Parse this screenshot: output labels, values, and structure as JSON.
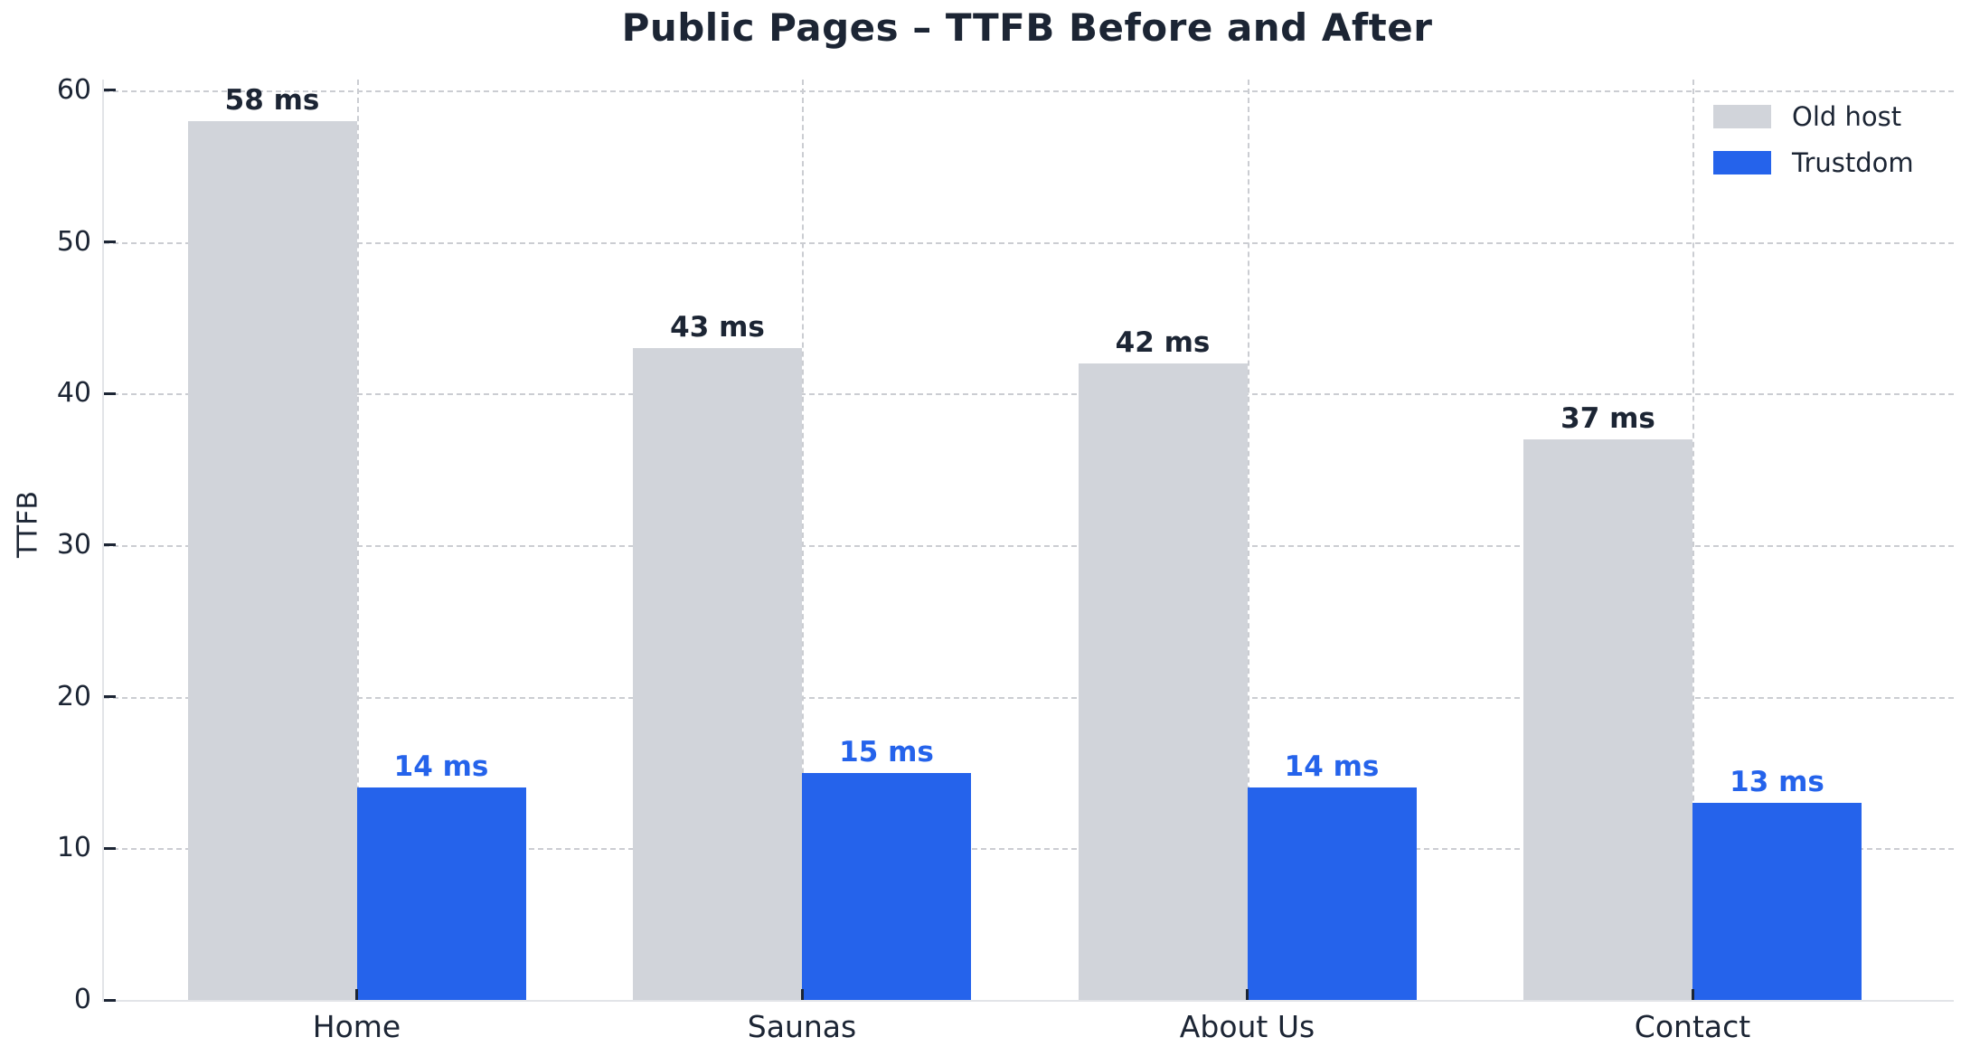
{
  "chart_data": {
    "type": "bar",
    "title": "Public Pages – TTFB Before and After",
    "ylabel": "TTFB",
    "xlabel": "",
    "categories": [
      "Home",
      "Saunas",
      "About Us",
      "Contact"
    ],
    "series": [
      {
        "name": "Old host",
        "color": "#d1d4da",
        "label_color": "#1c2534",
        "values": [
          58,
          43,
          42,
          37
        ],
        "value_labels": [
          "58 ms",
          "43 ms",
          "42 ms",
          "37 ms"
        ]
      },
      {
        "name": "Trustdom",
        "color": "#2563eb",
        "label_color": "#2563eb",
        "values": [
          14,
          15,
          14,
          13
        ],
        "value_labels": [
          "14 ms",
          "15 ms",
          "14 ms",
          "13 ms"
        ]
      }
    ],
    "y_ticks": [
      0,
      10,
      20,
      30,
      40,
      50,
      60
    ],
    "ylim": [
      0,
      60.7
    ],
    "grid": {
      "style": "dashed",
      "horizontal": true,
      "vertical": true,
      "color": "#cbcdd2"
    },
    "legend": {
      "position": "upper right",
      "frame": false
    },
    "colors": {
      "text": "#1c2534",
      "spine": "#e2e4e8",
      "background": "#ffffff"
    }
  }
}
